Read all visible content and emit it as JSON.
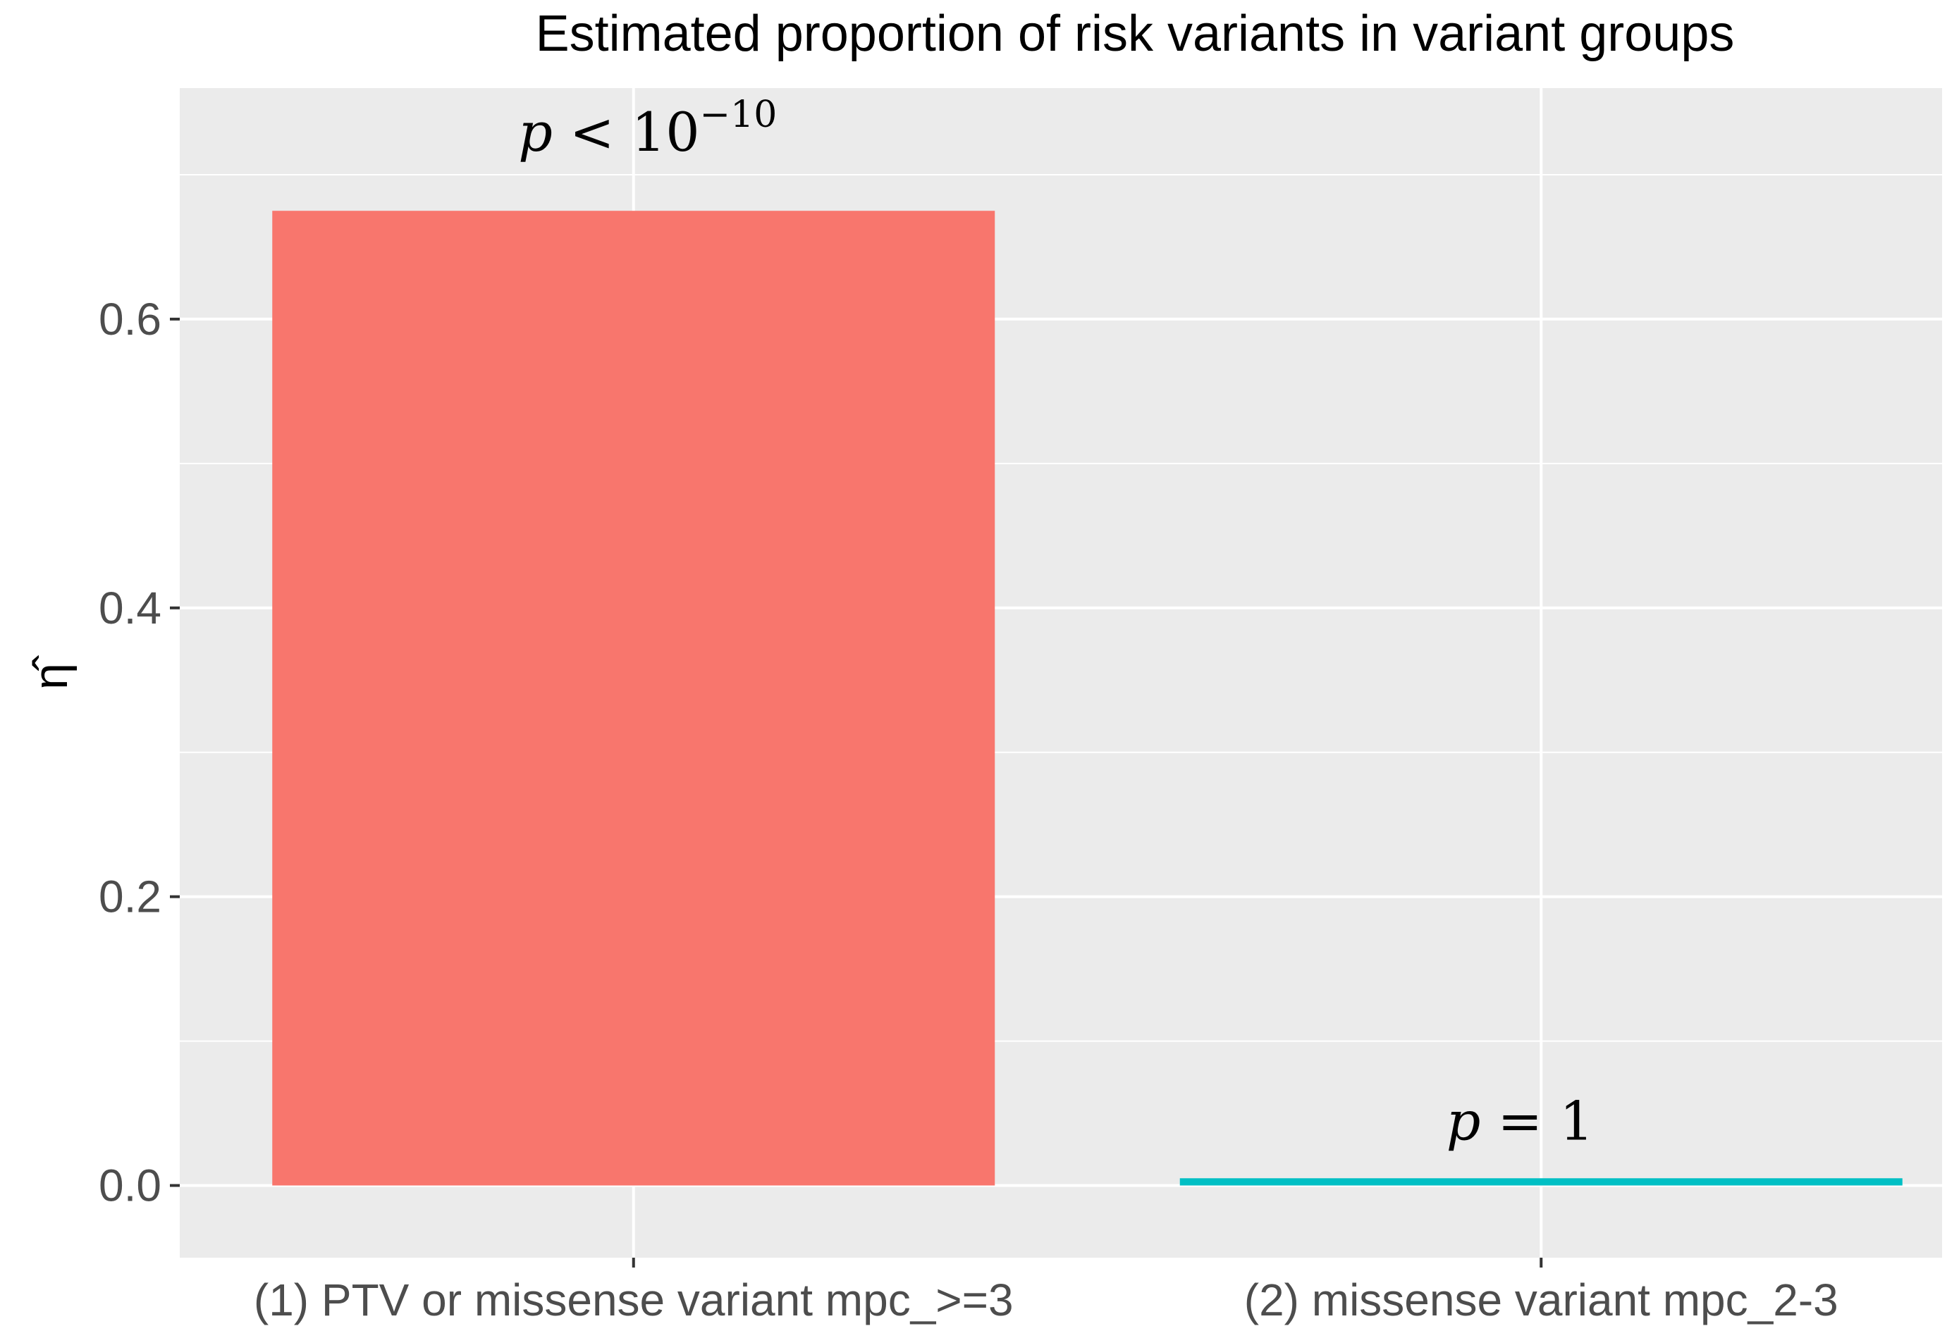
{
  "chart_data": {
    "type": "bar",
    "title": "Estimated proportion of risk variants in variant groups",
    "xlabel": "",
    "ylabel": "η̂",
    "ylim": [
      -0.05,
      0.76
    ],
    "yticks": [
      0.0,
      0.2,
      0.4,
      0.6
    ],
    "ytick_labels": [
      "0.0",
      "0.2",
      "0.4",
      "0.6"
    ],
    "grid": true,
    "legend": "none",
    "categories": [
      "(1) PTV or missense variant mpc_>=3",
      "(2) missense variant mpc_2-3"
    ],
    "values": [
      0.675,
      0.005
    ],
    "colors": [
      "#F8766D",
      "#00BFC4"
    ],
    "annotations": [
      {
        "category_index": 0,
        "p_symbol": "p",
        "relation": "<",
        "base": "10",
        "exponent": "−10"
      },
      {
        "category_index": 1,
        "p_symbol": "p",
        "relation": "=",
        "base": "1",
        "exponent": ""
      }
    ],
    "panel_background": "#EBEBEB",
    "gridline_color": "#FFFFFF"
  }
}
